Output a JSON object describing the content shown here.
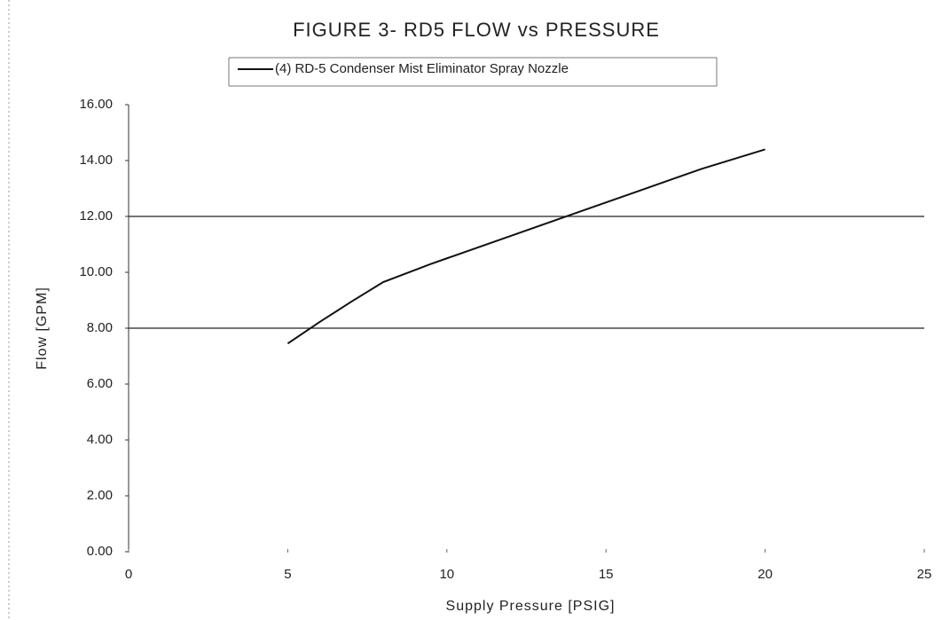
{
  "chart_data": {
    "type": "line",
    "title": "FIGURE 3- RD5 FLOW vs PRESSURE",
    "x_label": "Supply Pressure [PSIG]",
    "y_label": "Flow [GPM]",
    "x": [
      5,
      6,
      7,
      8,
      9.5,
      10,
      12,
      14,
      16,
      18,
      20
    ],
    "series": [
      {
        "name": "(4) RD-5 Condenser Mist Eliminator Spray Nozzle",
        "color": "#111111",
        "values": [
          7.45,
          8.22,
          8.95,
          9.65,
          10.3,
          10.5,
          11.3,
          12.1,
          12.9,
          13.7,
          14.4
        ]
      }
    ],
    "xlim": [
      0,
      25
    ],
    "xticks": [
      0,
      5,
      10,
      15,
      20,
      25
    ],
    "ylim": [
      0,
      16
    ],
    "yticks": [
      {
        "value": 0,
        "label": "0.00"
      },
      {
        "value": 2,
        "label": "2.00"
      },
      {
        "value": 4,
        "label": "4.00"
      },
      {
        "value": 6,
        "label": "6.00"
      },
      {
        "value": 8,
        "label": "8.00"
      },
      {
        "value": 10,
        "label": "10.00"
      },
      {
        "value": 12,
        "label": "12.00"
      },
      {
        "value": 14,
        "label": "14.00"
      },
      {
        "value": 16,
        "label": "16.00"
      }
    ],
    "reference_lines": [
      8,
      12
    ],
    "legend": "top"
  }
}
